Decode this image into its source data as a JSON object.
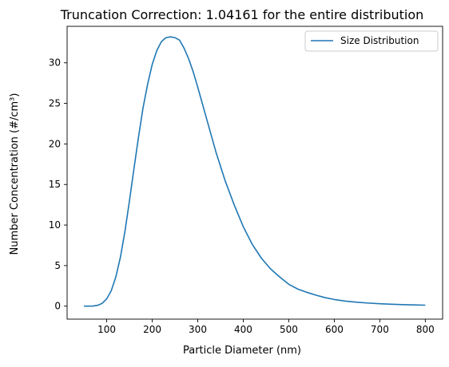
{
  "chart_data": {
    "type": "line",
    "title": "Truncation Correction: 1.04161 for the entire distribution",
    "xlabel": "Particle Diameter (nm)",
    "ylabel": "Number Concentration (#/cm³)",
    "xlim": [
      13,
      838
    ],
    "ylim": [
      -1.6,
      34.5
    ],
    "xticks": [
      100,
      200,
      300,
      400,
      500,
      600,
      700,
      800
    ],
    "xtick_labels": [
      "100",
      "200",
      "300",
      "400",
      "500",
      "600",
      "700",
      "800"
    ],
    "yticks": [
      0,
      5,
      10,
      15,
      20,
      25,
      30
    ],
    "ytick_labels": [
      "0",
      "5",
      "10",
      "15",
      "20",
      "25",
      "30"
    ],
    "grid": false,
    "legend": {
      "location": "upper right",
      "entries": [
        "Size Distribution"
      ]
    },
    "series": [
      {
        "name": "Size Distribution",
        "color": "#1f77b4",
        "x": [
          50,
          60,
          70,
          80,
          90,
          100,
          110,
          120,
          130,
          140,
          150,
          160,
          170,
          180,
          190,
          200,
          210,
          220,
          230,
          240,
          250,
          260,
          270,
          280,
          290,
          300,
          320,
          340,
          360,
          380,
          400,
          420,
          440,
          460,
          480,
          500,
          520,
          540,
          560,
          580,
          600,
          625,
          650,
          675,
          700,
          725,
          750,
          775,
          800
        ],
        "y": [
          0.0,
          0.0,
          0.02,
          0.1,
          0.35,
          0.9,
          1.9,
          3.6,
          6.0,
          9.2,
          13.0,
          17.0,
          20.9,
          24.5,
          27.4,
          29.8,
          31.5,
          32.6,
          33.1,
          33.2,
          33.1,
          32.8,
          31.8,
          30.5,
          28.9,
          27.0,
          23.0,
          19.0,
          15.5,
          12.5,
          9.8,
          7.6,
          5.9,
          4.6,
          3.6,
          2.7,
          2.1,
          1.7,
          1.35,
          1.05,
          0.82,
          0.62,
          0.48,
          0.38,
          0.3,
          0.24,
          0.19,
          0.15,
          0.12
        ]
      }
    ]
  }
}
